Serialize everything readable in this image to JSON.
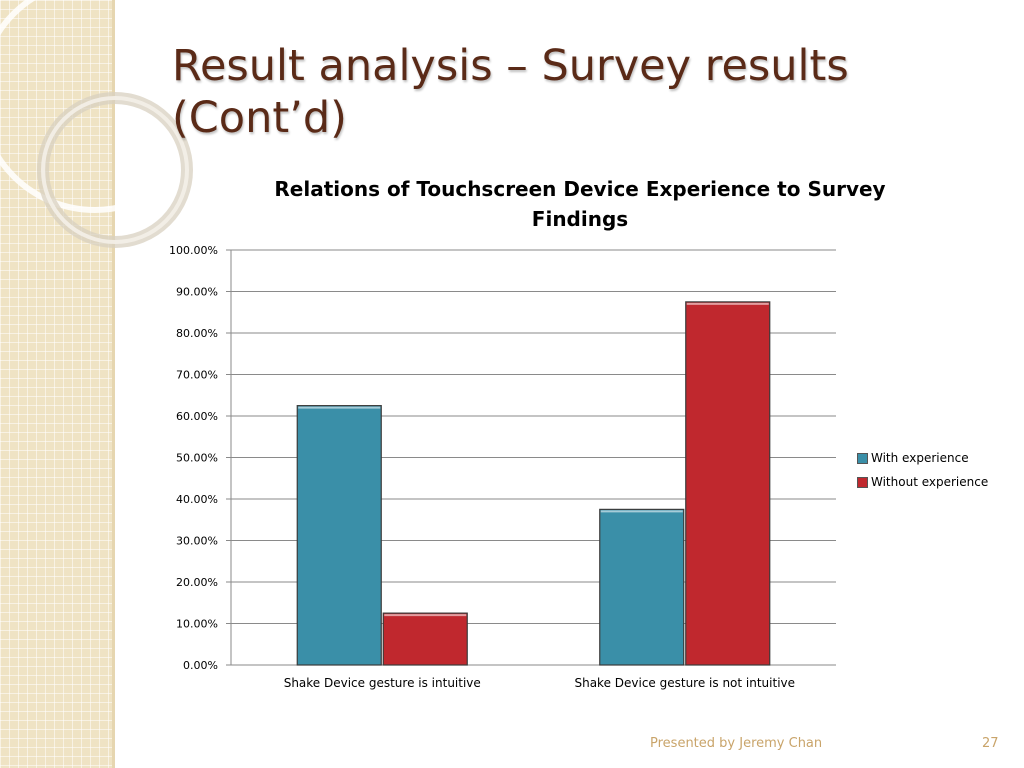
{
  "slide": {
    "title": "Result analysis – Survey results (Cont’d)",
    "footer": "Presented by Jeremy Chan",
    "page_number": "27"
  },
  "colors": {
    "with_experience": "#3a8fa8",
    "without_experience": "#c0282e",
    "title": "#5a2a17",
    "footer": "#c9a46a"
  },
  "chart_data": {
    "type": "bar",
    "title": "Relations of Touchscreen Device Experience to Survey Findings",
    "categories": [
      "Shake Device gesture is intuitive",
      "Shake Device gesture is not intuitive"
    ],
    "series": [
      {
        "name": "With experience",
        "values": [
          62.5,
          37.5
        ]
      },
      {
        "name": "Without experience",
        "values": [
          12.5,
          87.5
        ]
      }
    ],
    "ylim": [
      0,
      100
    ],
    "yticks": [
      "0.00%",
      "10.00%",
      "20.00%",
      "30.00%",
      "40.00%",
      "50.00%",
      "60.00%",
      "70.00%",
      "80.00%",
      "90.00%",
      "100.00%"
    ],
    "grid": true,
    "legend_position": "right"
  }
}
